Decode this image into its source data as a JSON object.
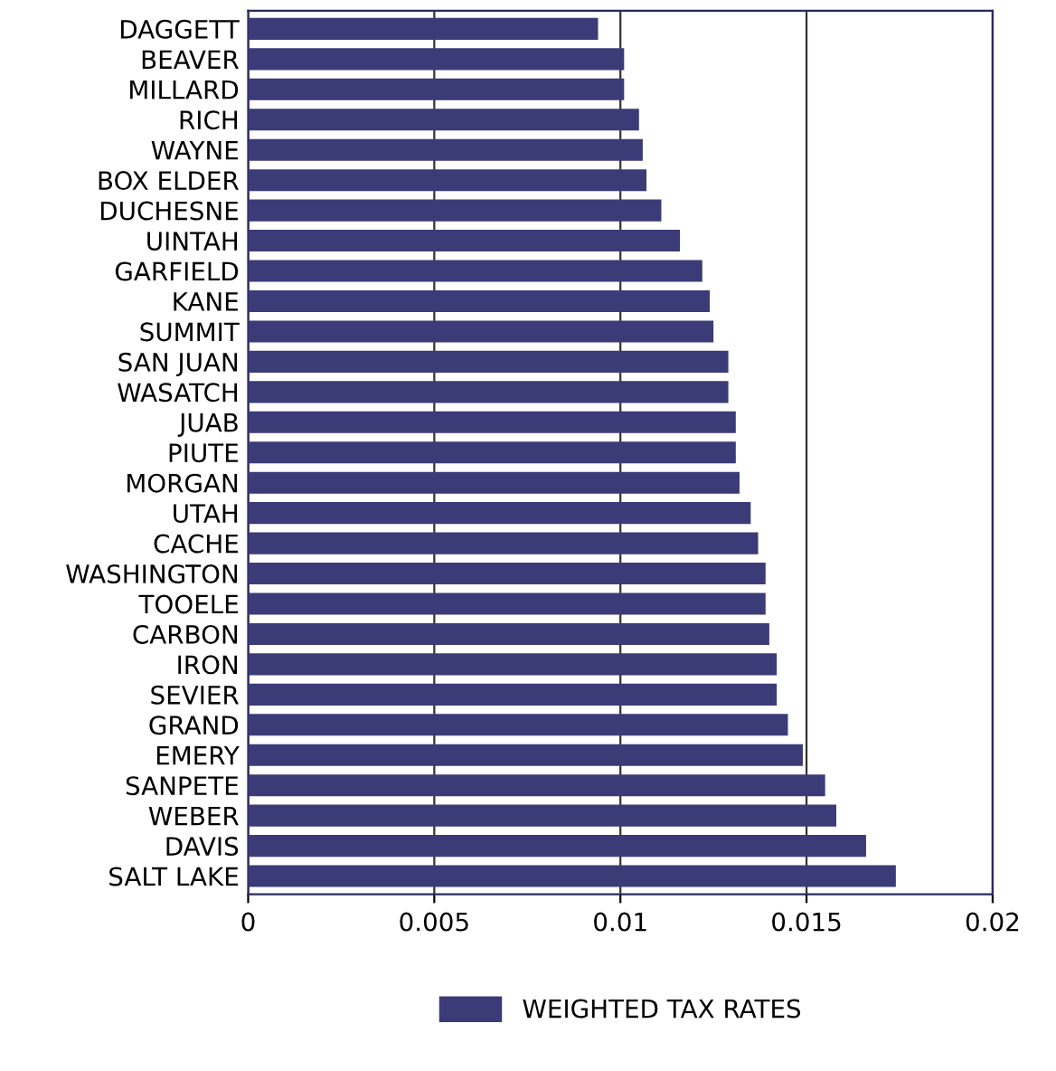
{
  "chart_data": {
    "type": "bar",
    "orientation": "horizontal",
    "categories": [
      "DAGGETT",
      "BEAVER",
      "MILLARD",
      "RICH",
      "WAYNE",
      "BOX ELDER",
      "DUCHESNE",
      "UINTAH",
      "GARFIELD",
      "KANE",
      "SUMMIT",
      "SAN JUAN",
      "WASATCH",
      "JUAB",
      "PIUTE",
      "MORGAN",
      "UTAH",
      "CACHE",
      "WASHINGTON",
      "TOOELE",
      "CARBON",
      "IRON",
      "SEVIER",
      "GRAND",
      "EMERY",
      "SANPETE",
      "WEBER",
      "DAVIS",
      "SALT LAKE"
    ],
    "series": [
      {
        "name": "WEIGHTED TAX RATES",
        "color": "#3b3b78",
        "values": [
          0.0094,
          0.0101,
          0.0101,
          0.0105,
          0.0106,
          0.0107,
          0.0111,
          0.0116,
          0.0122,
          0.0124,
          0.0125,
          0.0129,
          0.0129,
          0.0131,
          0.0131,
          0.0132,
          0.0135,
          0.0137,
          0.0139,
          0.0139,
          0.014,
          0.0142,
          0.0142,
          0.0145,
          0.0149,
          0.0155,
          0.0158,
          0.0166,
          0.0174
        ]
      }
    ],
    "xlim": [
      0,
      0.02
    ],
    "xticks": [
      0,
      0.005,
      0.01,
      0.015,
      0.02
    ],
    "grid": "x",
    "legend": "bottom"
  }
}
